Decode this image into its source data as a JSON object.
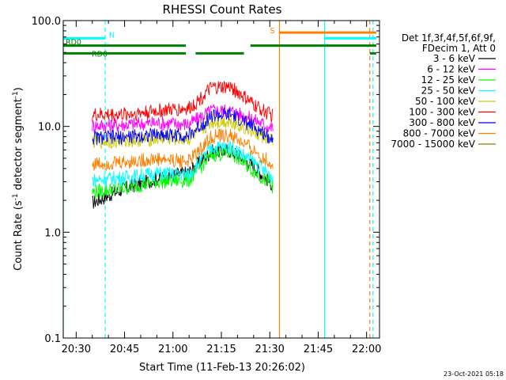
{
  "chart_data": {
    "type": "line",
    "title": "RHESSI Count Rates",
    "xlabel": "Start Time (11-Feb-13 20:26:02)",
    "ylabel_main": "Count Rate (s",
    "ylabel_sup1": "-1",
    "ylabel_mid": " detector segment",
    "ylabel_sup2": "-1",
    "ylabel_end": ")",
    "y_scale": "log",
    "ylim": [
      0.1,
      100.0
    ],
    "xlim": [
      "20:26",
      "22:04"
    ],
    "x_ticks": [
      "20:30",
      "20:45",
      "21:00",
      "21:15",
      "21:30",
      "21:45",
      "22:00"
    ],
    "y_ticks": [
      "0.1",
      "1.0",
      "10.0",
      "100.0"
    ],
    "legend_header": [
      "Det 1f,3f,4f,5f,6f,9f,",
      "FDecim 1, Att 0"
    ],
    "series": [
      {
        "name": "3 - 6 keV",
        "color": "#000000",
        "points": [
          [
            "20:35",
            1.9
          ],
          [
            "20:45",
            2.6
          ],
          [
            "20:55",
            3.2
          ],
          [
            "21:05",
            3.7
          ],
          [
            "21:12",
            5.8
          ],
          [
            "21:18",
            5.9
          ],
          [
            "21:25",
            4.2
          ],
          [
            "21:31",
            2.8
          ]
        ]
      },
      {
        "name": "6 - 12 keV",
        "color": "#ff00ff",
        "points": [
          [
            "20:35",
            10.2
          ],
          [
            "20:45",
            10.4
          ],
          [
            "20:55",
            10.8
          ],
          [
            "21:05",
            10.5
          ],
          [
            "21:12",
            14.2
          ],
          [
            "21:18",
            14.0
          ],
          [
            "21:25",
            11.6
          ],
          [
            "21:31",
            9.6
          ]
        ]
      },
      {
        "name": "12 - 25 keV",
        "color": "#00ff00",
        "points": [
          [
            "20:35",
            2.4
          ],
          [
            "20:45",
            2.6
          ],
          [
            "20:55",
            3.0
          ],
          [
            "21:05",
            3.1
          ],
          [
            "21:12",
            5.4
          ],
          [
            "21:18",
            5.6
          ],
          [
            "21:25",
            3.8
          ],
          [
            "21:31",
            2.7
          ]
        ]
      },
      {
        "name": "25 - 50 keV",
        "color": "#00ffff",
        "points": [
          [
            "20:35",
            3.1
          ],
          [
            "20:45",
            3.3
          ],
          [
            "20:55",
            3.6
          ],
          [
            "21:05",
            3.5
          ],
          [
            "21:12",
            6.3
          ],
          [
            "21:18",
            6.4
          ],
          [
            "21:25",
            4.6
          ],
          [
            "21:31",
            3.3
          ]
        ]
      },
      {
        "name": "50 - 100 keV",
        "color": "#cccc00",
        "points": [
          [
            "20:35",
            7.2
          ],
          [
            "20:45",
            7.3
          ],
          [
            "20:55",
            7.7
          ],
          [
            "21:05",
            7.6
          ],
          [
            "21:12",
            11.0
          ],
          [
            "21:18",
            11.2
          ],
          [
            "21:25",
            8.8
          ],
          [
            "21:31",
            7.2
          ]
        ]
      },
      {
        "name": "100 - 300 keV",
        "color": "#ff0000",
        "points": [
          [
            "20:35",
            12.8
          ],
          [
            "20:45",
            13.0
          ],
          [
            "20:55",
            14.0
          ],
          [
            "21:05",
            14.8
          ],
          [
            "21:12",
            23.0
          ],
          [
            "21:18",
            23.5
          ],
          [
            "21:25",
            16.0
          ],
          [
            "21:31",
            12.5
          ]
        ]
      },
      {
        "name": "300 - 800 keV",
        "color": "#0000ff",
        "points": [
          [
            "20:35",
            7.8
          ],
          [
            "20:45",
            7.9
          ],
          [
            "20:55",
            8.4
          ],
          [
            "21:05",
            8.2
          ],
          [
            "21:12",
            12.6
          ],
          [
            "21:18",
            12.8
          ],
          [
            "21:25",
            9.9
          ],
          [
            "21:31",
            7.6
          ]
        ]
      },
      {
        "name": "800 - 7000 keV",
        "color": "#ff8000",
        "points": [
          [
            "20:35",
            4.4
          ],
          [
            "20:45",
            4.6
          ],
          [
            "20:55",
            4.9
          ],
          [
            "21:05",
            4.7
          ],
          [
            "21:12",
            8.0
          ],
          [
            "21:18",
            8.2
          ],
          [
            "21:25",
            5.9
          ],
          [
            "21:31",
            4.3
          ]
        ]
      },
      {
        "name": "7000 - 15000 keV",
        "color": "#808000",
        "points": []
      }
    ],
    "state_bars": [
      {
        "label": "N",
        "color": "#00ffff",
        "level": 68,
        "segments": [
          [
            "20:26",
            "20:39"
          ],
          [
            "21:47",
            "22:03"
          ]
        ]
      },
      {
        "label": "S",
        "color": "#ff8000",
        "level": 77,
        "segments": [
          [
            "21:33",
            "22:03"
          ]
        ]
      },
      {
        "label": "RD0",
        "color": "#008000",
        "level": 58,
        "segments": [
          [
            "20:26",
            "21:04"
          ],
          [
            "21:24",
            "22:03"
          ]
        ]
      },
      {
        "label": "RD6",
        "color": "#008000",
        "level": 49,
        "segments": [
          [
            "20:26",
            "21:04"
          ],
          [
            "21:07",
            "21:22"
          ],
          [
            "22:01",
            "22:03"
          ]
        ]
      }
    ],
    "vertical_lines": [
      {
        "time": "20:26",
        "color": "#00ffff",
        "style": "solid"
      },
      {
        "time": "20:39",
        "color": "#00ffff",
        "style": "dashed"
      },
      {
        "time": "21:33",
        "color": "#ff8000",
        "style": "solid"
      },
      {
        "time": "21:47",
        "color": "#00ffff",
        "style": "solid"
      },
      {
        "time": "22:01",
        "color": "#ff8000",
        "style": "dashed"
      },
      {
        "time": "22:02",
        "color": "#00ffff",
        "style": "dashed"
      }
    ],
    "footer": "23-Oct-2021 05:18",
    "grid": false,
    "legend_position": "right"
  }
}
